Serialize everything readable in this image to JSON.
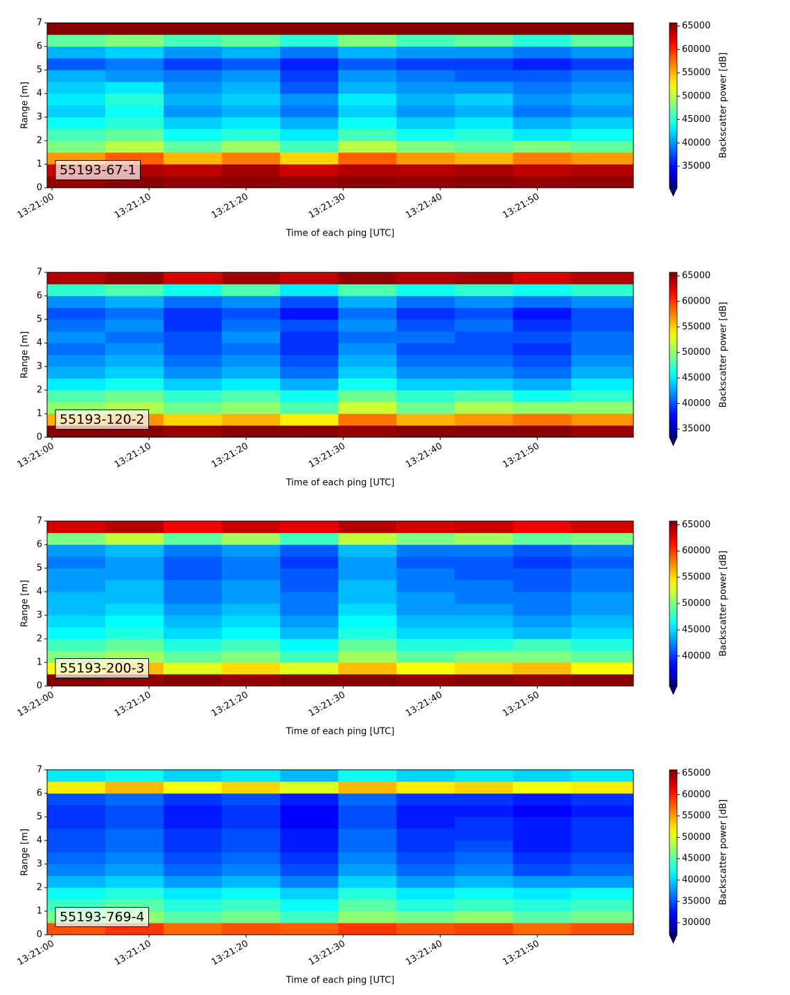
{
  "chart_data": [
    {
      "type": "heatmap",
      "annotation": "55193-67-1",
      "xlabel": "Time of each ping [UTC]",
      "ylabel": "Range [m]",
      "colorbar_label": "Backscatter power [dB]",
      "colormap": "jet",
      "extend": "min",
      "xlim": [
        -0.5,
        59.9
      ],
      "ylim": [
        0,
        7
      ],
      "clim": [
        30400,
        65700
      ],
      "xticks": [
        {
          "value": 0,
          "label": "13:21:00"
        },
        {
          "value": 10,
          "label": "13:21:10"
        },
        {
          "value": 20,
          "label": "13:21:20"
        },
        {
          "value": 30,
          "label": "13:21:30"
        },
        {
          "value": 40,
          "label": "13:21:40"
        },
        {
          "value": 50,
          "label": "13:21:50"
        }
      ],
      "yticks": [
        0,
        1,
        2,
        3,
        4,
        5,
        6,
        7
      ],
      "cticks": [
        35000,
        40000,
        45000,
        50000,
        55000,
        60000,
        65000
      ],
      "x_edges": [
        -0.5,
        5.5,
        11.5,
        17.5,
        23.5,
        29.5,
        35.5,
        41.5,
        47.5,
        53.5,
        59.9
      ],
      "y_edges": [
        0,
        0.5,
        1,
        1.5,
        2,
        2.5,
        3,
        3.5,
        4,
        4.5,
        5,
        5.5,
        6,
        6.5,
        7
      ],
      "z": [
        [
          65000,
          65500,
          65000,
          65200,
          65000,
          65400,
          65000,
          65300,
          65000,
          65100
        ],
        [
          63000,
          64000,
          63500,
          64500,
          63000,
          64000,
          63800,
          64200,
          63500,
          64000
        ],
        [
          56000,
          58000,
          55000,
          57000,
          54000,
          58000,
          56000,
          55000,
          57000,
          56000
        ],
        [
          48000,
          50000,
          47000,
          49000,
          46000,
          50000,
          48000,
          47000,
          48000,
          47000
        ],
        [
          46000,
          47000,
          44000,
          45000,
          43000,
          46000,
          44000,
          45000,
          43000,
          44000
        ],
        [
          44000,
          45000,
          42000,
          43000,
          41000,
          44000,
          42000,
          43000,
          41000,
          42000
        ],
        [
          42000,
          44000,
          40000,
          41000,
          39000,
          42000,
          40000,
          41000,
          39000,
          40000
        ],
        [
          43000,
          45000,
          41000,
          42000,
          40000,
          43000,
          41000,
          42000,
          40000,
          41000
        ],
        [
          42000,
          43000,
          40000,
          41000,
          38000,
          41000,
          40000,
          40000,
          39000,
          40000
        ],
        [
          41000,
          40000,
          39000,
          40000,
          37000,
          40000,
          39000,
          38000,
          38000,
          39000
        ],
        [
          38000,
          39000,
          37000,
          38000,
          36000,
          38000,
          37000,
          37000,
          36000,
          37000
        ],
        [
          41000,
          42000,
          40000,
          41000,
          39000,
          41000,
          40000,
          40000,
          39000,
          40000
        ],
        [
          47000,
          48000,
          46000,
          47000,
          45000,
          48000,
          46000,
          47000,
          45000,
          47000
        ],
        [
          65500,
          65500,
          65500,
          65500,
          65500,
          65500,
          65500,
          65500,
          65500,
          65500
        ]
      ]
    },
    {
      "type": "heatmap",
      "annotation": "55193-120-2",
      "xlabel": "Time of each ping [UTC]",
      "ylabel": "Range [m]",
      "colorbar_label": "Backscatter power [dB]",
      "colormap": "jet",
      "extend": "min",
      "xlim": [
        -0.5,
        59.9
      ],
      "ylim": [
        0,
        7
      ],
      "clim": [
        33400,
        65700
      ],
      "xticks": [
        {
          "value": 0,
          "label": "13:21:00"
        },
        {
          "value": 10,
          "label": "13:21:10"
        },
        {
          "value": 20,
          "label": "13:21:20"
        },
        {
          "value": 30,
          "label": "13:21:30"
        },
        {
          "value": 40,
          "label": "13:21:40"
        },
        {
          "value": 50,
          "label": "13:21:50"
        }
      ],
      "yticks": [
        0,
        1,
        2,
        3,
        4,
        5,
        6,
        7
      ],
      "cticks": [
        35000,
        40000,
        45000,
        50000,
        55000,
        60000,
        65000
      ],
      "x_edges": [
        -0.5,
        5.5,
        11.5,
        17.5,
        23.5,
        29.5,
        35.5,
        41.5,
        47.5,
        53.5,
        59.9
      ],
      "y_edges": [
        0,
        0.5,
        1,
        1.5,
        2,
        2.5,
        3,
        3.5,
        4,
        4.5,
        5,
        5.5,
        6,
        6.5,
        7
      ],
      "z": [
        [
          65500,
          65500,
          65000,
          65500,
          65500,
          65000,
          65500,
          65500,
          65500,
          65000
        ],
        [
          56000,
          57000,
          55000,
          56000,
          54000,
          58000,
          56000,
          57000,
          58000,
          57000
        ],
        [
          50000,
          51000,
          49000,
          50000,
          48000,
          52000,
          49000,
          51000,
          50000,
          50000
        ],
        [
          48000,
          49000,
          47000,
          48000,
          46000,
          49000,
          47000,
          48000,
          46000,
          47000
        ],
        [
          45000,
          46000,
          44000,
          45000,
          43000,
          46000,
          44000,
          44000,
          43000,
          45000
        ],
        [
          43000,
          44000,
          42000,
          43000,
          41000,
          44000,
          42000,
          42000,
          41000,
          43000
        ],
        [
          42000,
          43000,
          41000,
          42000,
          40000,
          43000,
          41000,
          41000,
          40000,
          42000
        ],
        [
          41000,
          42000,
          40000,
          41000,
          39000,
          42000,
          40000,
          40000,
          39000,
          41000
        ],
        [
          42000,
          41000,
          40000,
          42000,
          39000,
          41000,
          41000,
          40000,
          40000,
          41000
        ],
        [
          41000,
          42000,
          39000,
          41000,
          40000,
          42000,
          40000,
          41000,
          39000,
          40000
        ],
        [
          40000,
          41000,
          39000,
          40000,
          38000,
          41000,
          39000,
          40000,
          38000,
          40000
        ],
        [
          42000,
          43000,
          41000,
          42000,
          40000,
          43000,
          41000,
          42000,
          41000,
          42000
        ],
        [
          47000,
          48000,
          46000,
          48000,
          45000,
          48000,
          46000,
          47000,
          46000,
          47000
        ],
        [
          64000,
          65000,
          63000,
          64500,
          63500,
          65000,
          64000,
          64500,
          63000,
          64000
        ]
      ]
    },
    {
      "type": "heatmap",
      "annotation": "55193-200-3",
      "xlabel": "Time of each ping [UTC]",
      "ylabel": "Range [m]",
      "colorbar_label": "Backscatter power [dB]",
      "colormap": "jet",
      "extend": "min",
      "xlim": [
        -0.5,
        59.9
      ],
      "ylim": [
        0,
        7
      ],
      "clim": [
        34300,
        65700
      ],
      "xticks": [
        {
          "value": 0,
          "label": "13:21:00"
        },
        {
          "value": 10,
          "label": "13:21:10"
        },
        {
          "value": 20,
          "label": "13:21:20"
        },
        {
          "value": 30,
          "label": "13:21:30"
        },
        {
          "value": 40,
          "label": "13:21:40"
        },
        {
          "value": 50,
          "label": "13:21:50"
        }
      ],
      "yticks": [
        0,
        1,
        2,
        3,
        4,
        5,
        6,
        7
      ],
      "cticks": [
        40000,
        45000,
        50000,
        55000,
        60000,
        65000
      ],
      "x_edges": [
        -0.5,
        5.5,
        11.5,
        17.5,
        23.5,
        29.5,
        35.5,
        41.5,
        47.5,
        53.5,
        59.9
      ],
      "y_edges": [
        0,
        0.5,
        1,
        1.5,
        2,
        2.5,
        3,
        3.5,
        4,
        4.5,
        5,
        5.5,
        6,
        6.5,
        7
      ],
      "z": [
        [
          65500,
          65000,
          65500,
          65000,
          65500,
          65500,
          65000,
          65500,
          65000,
          65500
        ],
        [
          54000,
          56000,
          53000,
          55000,
          53000,
          56000,
          54000,
          55000,
          56000,
          54000
        ],
        [
          50000,
          51000,
          49000,
          50000,
          48000,
          51000,
          49000,
          50000,
          50000,
          49000
        ],
        [
          48000,
          49000,
          47000,
          48000,
          46000,
          49000,
          47000,
          47000,
          48000,
          47000
        ],
        [
          46000,
          47000,
          45000,
          46000,
          44000,
          47000,
          45000,
          45000,
          44000,
          45000
        ],
        [
          45000,
          46000,
          44000,
          45000,
          43000,
          46000,
          44000,
          44000,
          43000,
          44000
        ],
        [
          44000,
          45000,
          43000,
          44000,
          42000,
          45000,
          43000,
          43000,
          42000,
          43000
        ],
        [
          44000,
          44000,
          42000,
          43000,
          42000,
          44000,
          43000,
          42000,
          42000,
          43000
        ],
        [
          43000,
          44000,
          42000,
          43000,
          41000,
          44000,
          42000,
          42000,
          41000,
          42000
        ],
        [
          43000,
          43000,
          41000,
          42000,
          41000,
          43000,
          42000,
          41000,
          41000,
          42000
        ],
        [
          42000,
          43000,
          41000,
          42000,
          40000,
          43000,
          41000,
          41000,
          40000,
          41000
        ],
        [
          43000,
          44000,
          42000,
          43000,
          41000,
          44000,
          42000,
          42000,
          41000,
          42000
        ],
        [
          50000,
          52000,
          49000,
          51000,
          48000,
          52000,
          50000,
          51000,
          49000,
          50000
        ],
        [
          63000,
          64000,
          62000,
          63500,
          62500,
          64000,
          63000,
          63500,
          62000,
          63000
        ]
      ]
    },
    {
      "type": "heatmap",
      "annotation": "55193-769-4",
      "xlabel": "Time of each ping [UTC]",
      "ylabel": "Range [m]",
      "colorbar_label": "Backscatter power [dB]",
      "colormap": "jet",
      "extend": "min",
      "xlim": [
        -0.5,
        59.9
      ],
      "ylim": [
        0,
        7
      ],
      "clim": [
        27200,
        65800
      ],
      "xticks": [
        {
          "value": 0,
          "label": "13:21:00"
        },
        {
          "value": 10,
          "label": "13:21:10"
        },
        {
          "value": 20,
          "label": "13:21:20"
        },
        {
          "value": 30,
          "label": "13:21:30"
        },
        {
          "value": 40,
          "label": "13:21:40"
        },
        {
          "value": 50,
          "label": "13:21:50"
        }
      ],
      "yticks": [
        0,
        1,
        2,
        3,
        4,
        5,
        6,
        7
      ],
      "cticks": [
        30000,
        35000,
        40000,
        45000,
        50000,
        55000,
        60000,
        65000
      ],
      "x_edges": [
        -0.5,
        5.5,
        11.5,
        17.5,
        23.5,
        29.5,
        35.5,
        41.5,
        47.5,
        53.5,
        59.9
      ],
      "y_edges": [
        0,
        0.5,
        1,
        1.5,
        2,
        2.5,
        3,
        3.5,
        4,
        4.5,
        5,
        5.5,
        6,
        6.5,
        7
      ],
      "z": [
        [
          58000,
          59000,
          57000,
          58000,
          57500,
          59000,
          58000,
          58500,
          57000,
          58000
        ],
        [
          46000,
          47000,
          45000,
          46000,
          44000,
          47000,
          46000,
          47000,
          45000,
          46000
        ],
        [
          44000,
          45000,
          43000,
          44000,
          42000,
          45000,
          43000,
          44000,
          43000,
          44000
        ],
        [
          42000,
          43000,
          41000,
          42000,
          40000,
          43000,
          41000,
          42000,
          41000,
          42000
        ],
        [
          39000,
          40000,
          38000,
          39000,
          37000,
          40000,
          38000,
          39000,
          38000,
          38000
        ],
        [
          37000,
          38000,
          36000,
          37000,
          35000,
          38000,
          36000,
          37000,
          35000,
          36000
        ],
        [
          36000,
          37000,
          35000,
          36000,
          34000,
          37000,
          35000,
          36000,
          34000,
          35000
        ],
        [
          35000,
          36000,
          34000,
          35000,
          33000,
          36000,
          34000,
          35000,
          33000,
          34000
        ],
        [
          35000,
          36000,
          34000,
          35000,
          33000,
          36000,
          34000,
          34000,
          33000,
          34000
        ],
        [
          34000,
          35000,
          33000,
          34000,
          32000,
          35000,
          33000,
          34000,
          33000,
          34000
        ],
        [
          34000,
          35000,
          33000,
          34000,
          32000,
          35000,
          33000,
          33000,
          32000,
          33000
        ],
        [
          35000,
          36000,
          34000,
          35000,
          33000,
          36000,
          34000,
          34000,
          33000,
          34000
        ],
        [
          52000,
          54000,
          51000,
          53000,
          50000,
          54000,
          52000,
          53000,
          51000,
          52000
        ],
        [
          41000,
          42000,
          40000,
          41000,
          39000,
          42000,
          40000,
          41000,
          40000,
          41000
        ]
      ]
    }
  ]
}
